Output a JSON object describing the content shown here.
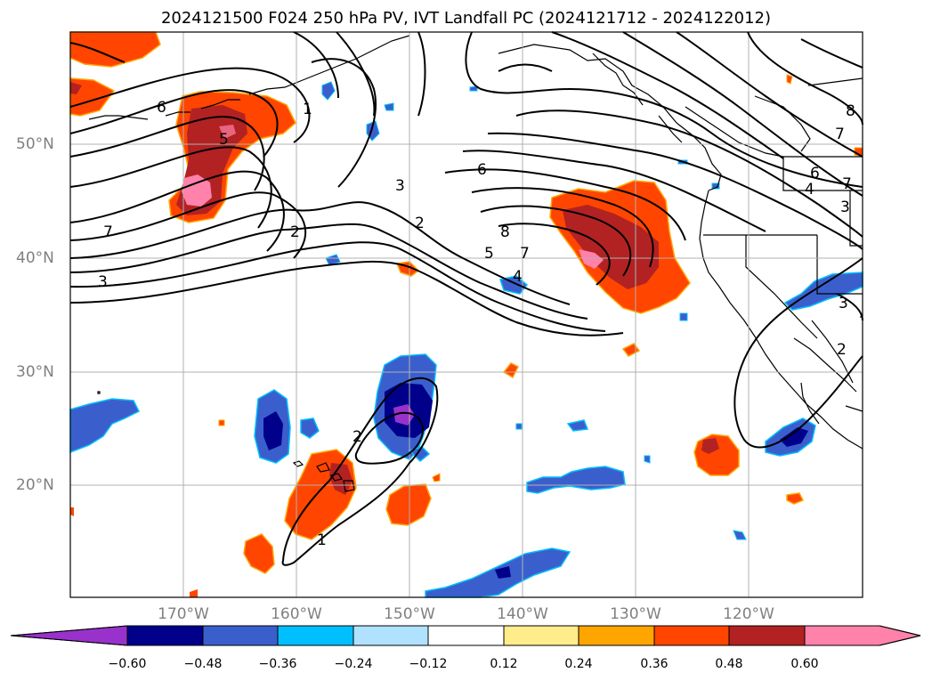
{
  "title": "2024121500 F024 250 hPa PV, IVT Landfall PC (2024121712 - 2024122012)",
  "lat_labels": [
    "50°N",
    "40°N",
    "30°N",
    "20°N"
  ],
  "lon_labels": [
    "170°W",
    "160°W",
    "150°W",
    "140°W",
    "130°W",
    "120°W"
  ],
  "colorbar": {
    "ticks": [
      "−0.60",
      "−0.48",
      "−0.36",
      "−0.24",
      "−0.12",
      "0.12",
      "0.24",
      "0.36",
      "0.48",
      "0.60"
    ],
    "colors": [
      "#9932cc",
      "#00008b",
      "#3a5fcd",
      "#00bfff",
      "#b0e2ff",
      "#ffffff",
      "#ffec8b",
      "#ffa500",
      "#ff4500",
      "#b22222",
      "#ff82ab"
    ]
  },
  "contour_labels": [
    "6",
    "5",
    "1",
    "7",
    "3",
    "2",
    "3",
    "2",
    "6",
    "8",
    "5",
    "7",
    "4",
    "7",
    "6",
    "4",
    "7",
    "3",
    "3",
    "2",
    "2",
    "1",
    "8"
  ],
  "colors": {
    "positive_fill": "#ff4500",
    "strong_positive": "#b22222",
    "max_positive": "#ff82ab",
    "negative_fill": "#3a5fcd",
    "strong_negative": "#00008b",
    "max_negative": "#9932cc",
    "grid": "#b0b0b0"
  }
}
